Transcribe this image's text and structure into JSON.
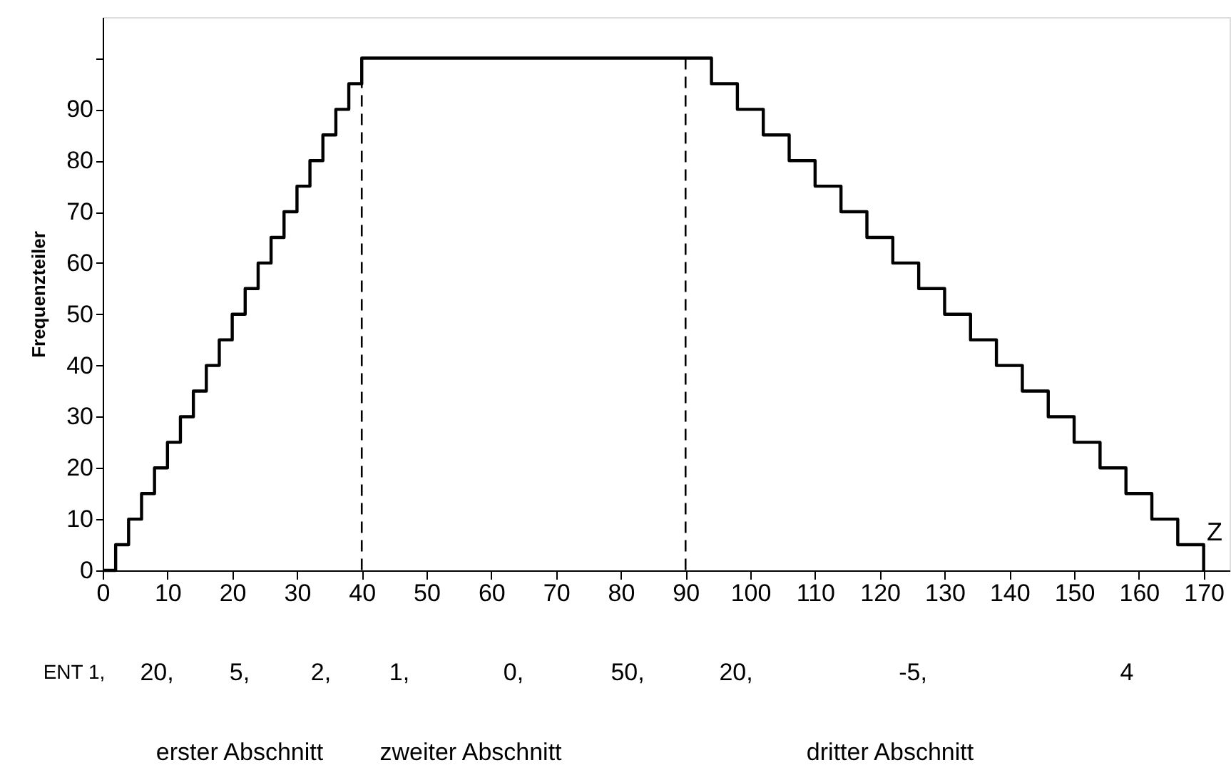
{
  "chart_data": {
    "type": "step",
    "ylabel": "Frequenzteiler",
    "xlabel": "Z",
    "x": [
      0,
      2,
      4,
      6,
      8,
      10,
      12,
      14,
      16,
      18,
      20,
      22,
      24,
      26,
      28,
      30,
      32,
      34,
      36,
      38,
      40,
      94,
      98,
      102,
      106,
      110,
      114,
      118,
      122,
      126,
      130,
      134,
      138,
      142,
      146,
      150,
      154,
      158,
      162,
      166,
      170
    ],
    "series": [
      {
        "color": "#000000",
        "values": [
          0,
          5,
          10,
          15,
          20,
          25,
          30,
          35,
          40,
          45,
          50,
          55,
          60,
          65,
          70,
          75,
          80,
          85,
          90,
          95,
          100,
          95,
          90,
          85,
          80,
          75,
          70,
          65,
          60,
          55,
          50,
          45,
          40,
          35,
          30,
          25,
          20,
          15,
          10,
          5,
          0
        ]
      }
    ],
    "xlim": [
      0,
      174
    ],
    "xticks": [
      0,
      10,
      20,
      30,
      40,
      50,
      60,
      70,
      80,
      90,
      100,
      110,
      120,
      130,
      140,
      150,
      160,
      170
    ],
    "ylim": [
      0,
      108
    ],
    "yticks": [
      0,
      10,
      20,
      30,
      40,
      50,
      60,
      70,
      80,
      90,
      {
        "value": 100,
        "label": null
      }
    ],
    "ref_lines": [
      {
        "axis": "x",
        "value": 40,
        "color": "#000000",
        "line_style": "dashed"
      },
      {
        "axis": "x",
        "value": 90,
        "color": "#000000",
        "line_style": "dashed"
      }
    ],
    "annotations": [
      "ENT 1,",
      "20,",
      "5,",
      "2,",
      "1,",
      "0,",
      "50,",
      "20,",
      "-5,",
      "4",
      "erster Abschnitt",
      "zweiter Abschnitt",
      "dritter Abschnitt"
    ],
    "grid": false,
    "marker": "none",
    "line_style": "solid"
  }
}
